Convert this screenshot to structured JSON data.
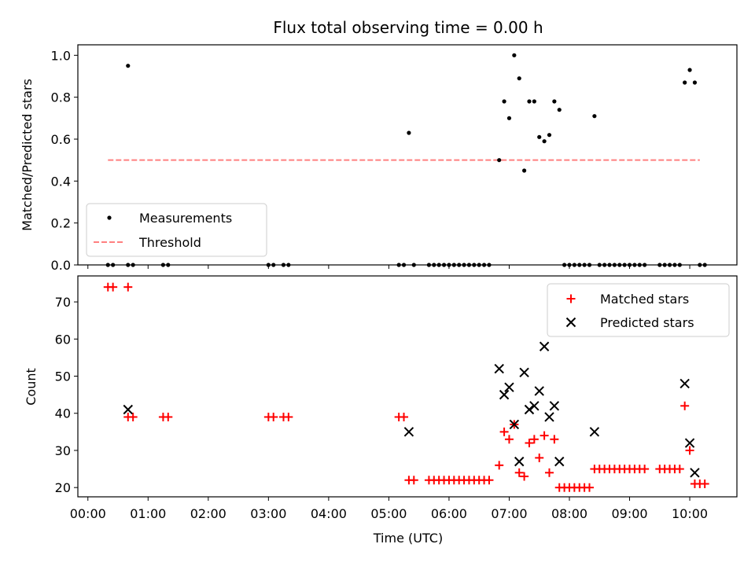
{
  "chart_data": [
    {
      "type": "scatter",
      "title": "Flux total observing time = 0.00 h",
      "ylabel": "Matched/Predicted stars",
      "xlabel": "",
      "ylim": [
        0,
        1.05
      ],
      "yticks": [
        0.0,
        0.2,
        0.4,
        0.6,
        0.8,
        1.0
      ],
      "ytick_labels": [
        "0.0",
        "0.2",
        "0.4",
        "0.6",
        "0.8",
        "1.0"
      ],
      "legend": {
        "placement": "lower-left",
        "entries": [
          {
            "label": "Measurements",
            "marker": "dot",
            "color": "#000000"
          },
          {
            "label": "Threshold",
            "marker": "dashed-line",
            "color": "#ff8080"
          }
        ]
      },
      "threshold": {
        "y": 0.5,
        "x_start": "00:20",
        "x_end": "10:10",
        "color": "#ff8080"
      },
      "series": [
        {
          "name": "Measurements",
          "color": "#000000",
          "points": [
            [
              "00:20",
              0
            ],
            [
              "00:25",
              0
            ],
            [
              "00:40",
              0.95
            ],
            [
              "00:40",
              0
            ],
            [
              "00:45",
              0
            ],
            [
              "01:15",
              0
            ],
            [
              "01:20",
              0
            ],
            [
              "03:00",
              0
            ],
            [
              "03:05",
              0
            ],
            [
              "03:15",
              0
            ],
            [
              "03:20",
              0
            ],
            [
              "05:10",
              0
            ],
            [
              "05:15",
              0
            ],
            [
              "05:20",
              0.63
            ],
            [
              "05:25",
              0
            ],
            [
              "05:40",
              0
            ],
            [
              "05:45",
              0
            ],
            [
              "05:50",
              0
            ],
            [
              "05:55",
              0
            ],
            [
              "06:00",
              0
            ],
            [
              "06:05",
              0
            ],
            [
              "06:10",
              0
            ],
            [
              "06:15",
              0
            ],
            [
              "06:20",
              0
            ],
            [
              "06:25",
              0
            ],
            [
              "06:30",
              0
            ],
            [
              "06:35",
              0
            ],
            [
              "06:40",
              0
            ],
            [
              "06:50",
              0.5
            ],
            [
              "06:55",
              0.78
            ],
            [
              "07:00",
              0.7
            ],
            [
              "07:05",
              1.0
            ],
            [
              "07:10",
              0.89
            ],
            [
              "07:15",
              0.45
            ],
            [
              "07:20",
              0.78
            ],
            [
              "07:25",
              0.78
            ],
            [
              "07:30",
              0.61
            ],
            [
              "07:35",
              0.59
            ],
            [
              "07:40",
              0.62
            ],
            [
              "07:45",
              0.78
            ],
            [
              "07:50",
              0.74
            ],
            [
              "07:55",
              0
            ],
            [
              "08:00",
              0
            ],
            [
              "08:05",
              0
            ],
            [
              "08:10",
              0
            ],
            [
              "08:15",
              0
            ],
            [
              "08:20",
              0
            ],
            [
              "08:25",
              0.71
            ],
            [
              "08:30",
              0
            ],
            [
              "08:35",
              0
            ],
            [
              "08:40",
              0
            ],
            [
              "08:45",
              0
            ],
            [
              "08:50",
              0
            ],
            [
              "08:55",
              0
            ],
            [
              "09:00",
              0
            ],
            [
              "09:05",
              0
            ],
            [
              "09:10",
              0
            ],
            [
              "09:15",
              0
            ],
            [
              "09:30",
              0
            ],
            [
              "09:35",
              0
            ],
            [
              "09:40",
              0
            ],
            [
              "09:45",
              0
            ],
            [
              "09:50",
              0
            ],
            [
              "09:55",
              0.87
            ],
            [
              "10:00",
              0.93
            ],
            [
              "10:05",
              0.87
            ],
            [
              "10:10",
              0
            ],
            [
              "10:15",
              0
            ]
          ]
        }
      ]
    },
    {
      "type": "scatter",
      "title": "",
      "ylabel": "Count",
      "xlabel": "Time (UTC)",
      "xlim": [
        "-00:10",
        "10:47"
      ],
      "ylim": [
        17.5,
        77
      ],
      "yticks": [
        20,
        30,
        40,
        50,
        60,
        70
      ],
      "ytick_labels": [
        "20",
        "30",
        "40",
        "50",
        "60",
        "70"
      ],
      "xticks": [
        "00:00",
        "01:00",
        "02:00",
        "03:00",
        "04:00",
        "05:00",
        "06:00",
        "07:00",
        "08:00",
        "09:00",
        "10:00"
      ],
      "legend": {
        "placement": "upper-right",
        "entries": [
          {
            "label": "Matched stars",
            "marker": "plus",
            "color": "#ff0000"
          },
          {
            "label": "Predicted stars",
            "marker": "x",
            "color": "#000000"
          }
        ]
      },
      "series": [
        {
          "name": "Matched stars",
          "color": "#ff0000",
          "points": [
            [
              "00:20",
              74
            ],
            [
              "00:25",
              74
            ],
            [
              "00:40",
              74
            ],
            [
              "00:40",
              39
            ],
            [
              "00:45",
              39
            ],
            [
              "01:15",
              39
            ],
            [
              "01:20",
              39
            ],
            [
              "03:00",
              39
            ],
            [
              "03:05",
              39
            ],
            [
              "03:15",
              39
            ],
            [
              "03:20",
              39
            ],
            [
              "05:10",
              39
            ],
            [
              "05:15",
              39
            ],
            [
              "05:20",
              22
            ],
            [
              "05:25",
              22
            ],
            [
              "05:40",
              22
            ],
            [
              "05:45",
              22
            ],
            [
              "05:50",
              22
            ],
            [
              "05:55",
              22
            ],
            [
              "06:00",
              22
            ],
            [
              "06:05",
              22
            ],
            [
              "06:10",
              22
            ],
            [
              "06:15",
              22
            ],
            [
              "06:20",
              22
            ],
            [
              "06:25",
              22
            ],
            [
              "06:30",
              22
            ],
            [
              "06:35",
              22
            ],
            [
              "06:40",
              22
            ],
            [
              "06:50",
              26
            ],
            [
              "06:55",
              35
            ],
            [
              "07:00",
              33
            ],
            [
              "07:05",
              37
            ],
            [
              "07:10",
              24
            ],
            [
              "07:15",
              23
            ],
            [
              "07:20",
              32
            ],
            [
              "07:25",
              33
            ],
            [
              "07:30",
              28
            ],
            [
              "07:35",
              34
            ],
            [
              "07:40",
              24
            ],
            [
              "07:45",
              33
            ],
            [
              "07:50",
              20
            ],
            [
              "07:55",
              20
            ],
            [
              "08:00",
              20
            ],
            [
              "08:05",
              20
            ],
            [
              "08:10",
              20
            ],
            [
              "08:15",
              20
            ],
            [
              "08:20",
              20
            ],
            [
              "08:25",
              25
            ],
            [
              "08:30",
              25
            ],
            [
              "08:35",
              25
            ],
            [
              "08:40",
              25
            ],
            [
              "08:45",
              25
            ],
            [
              "08:50",
              25
            ],
            [
              "08:55",
              25
            ],
            [
              "09:00",
              25
            ],
            [
              "09:05",
              25
            ],
            [
              "09:10",
              25
            ],
            [
              "09:15",
              25
            ],
            [
              "09:30",
              25
            ],
            [
              "09:35",
              25
            ],
            [
              "09:40",
              25
            ],
            [
              "09:45",
              25
            ],
            [
              "09:50",
              25
            ],
            [
              "09:55",
              42
            ],
            [
              "10:00",
              30
            ],
            [
              "10:05",
              21
            ],
            [
              "10:10",
              21
            ],
            [
              "10:15",
              21
            ]
          ]
        },
        {
          "name": "Predicted stars",
          "color": "#000000",
          "points": [
            [
              "00:40",
              41
            ],
            [
              "05:20",
              35
            ],
            [
              "06:50",
              52
            ],
            [
              "06:55",
              45
            ],
            [
              "07:00",
              47
            ],
            [
              "07:05",
              37
            ],
            [
              "07:10",
              27
            ],
            [
              "07:15",
              51
            ],
            [
              "07:20",
              41
            ],
            [
              "07:25",
              42
            ],
            [
              "07:30",
              46
            ],
            [
              "07:35",
              58
            ],
            [
              "07:40",
              39
            ],
            [
              "07:45",
              42
            ],
            [
              "07:50",
              27
            ],
            [
              "08:25",
              35
            ],
            [
              "09:55",
              48
            ],
            [
              "10:00",
              32
            ],
            [
              "10:05",
              24
            ]
          ]
        }
      ]
    }
  ]
}
